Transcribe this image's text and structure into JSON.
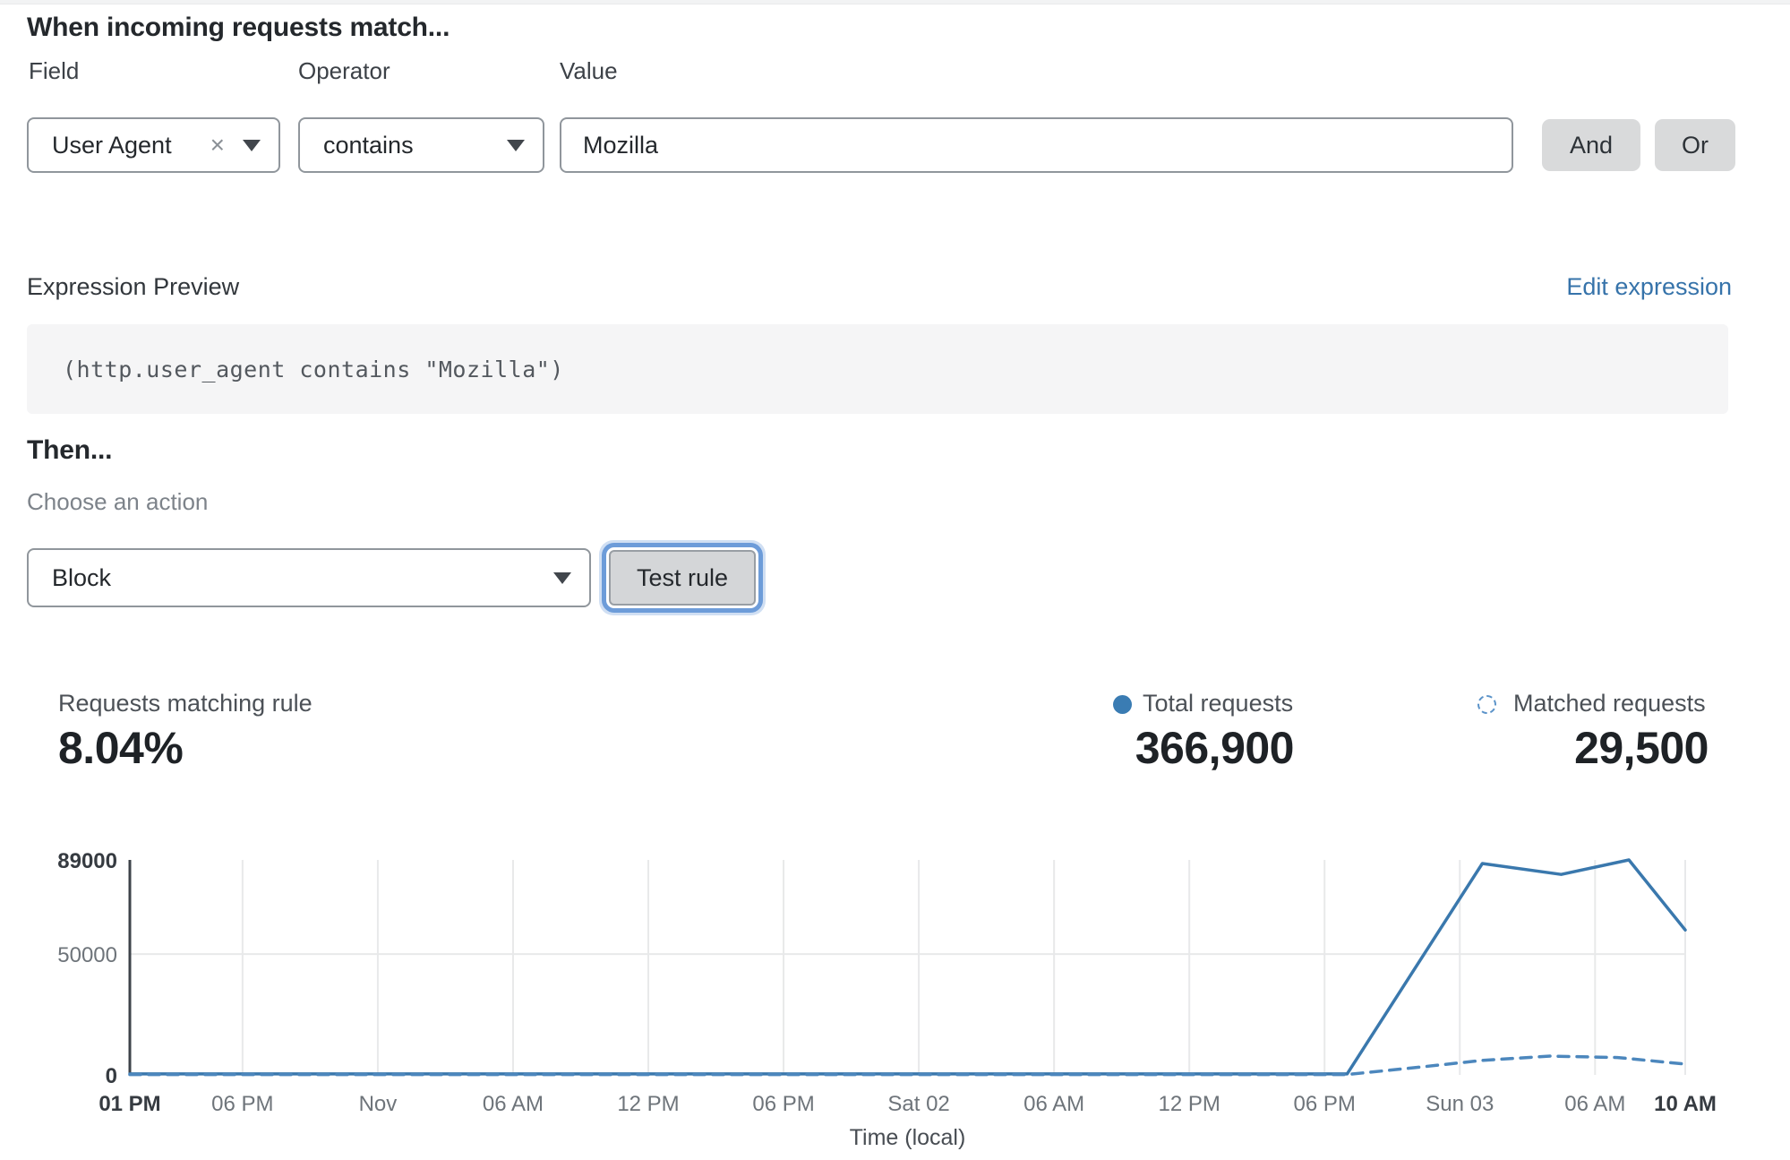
{
  "header": {
    "title": "When incoming requests match..."
  },
  "rule_builder": {
    "field_label": "Field",
    "operator_label": "Operator",
    "value_label": "Value",
    "field_value": "User Agent",
    "field_clear": "×",
    "operator_value": "contains",
    "value_value": "Mozilla",
    "and_label": "And",
    "or_label": "Or"
  },
  "expression": {
    "preview_label": "Expression Preview",
    "edit_link": "Edit expression",
    "code": "(http.user_agent contains \"Mozilla\")"
  },
  "action": {
    "then_label": "Then...",
    "choose_label": "Choose an action",
    "action_value": "Block",
    "test_button": "Test rule"
  },
  "stats": {
    "matching_label": "Requests matching rule",
    "matching_value": "8.04%",
    "total_label": "Total requests",
    "total_value": "366,900",
    "matched_label": "Matched requests",
    "matched_value": "29,500"
  },
  "colors": {
    "link_blue": "#3673aa",
    "legend_solid_blue": "#3a7cb3",
    "legend_dashed_blue": "#5b93c9",
    "focus_ring_blue": "#6d9cd9",
    "button_grey": "#d9dadb"
  },
  "chart_data": {
    "type": "line",
    "title": "",
    "xlabel": "Time (local)",
    "ylabel": "",
    "ylim": [
      0,
      89000
    ],
    "x_span_hours": 69,
    "grid": true,
    "legend_position": "top-right stats row",
    "y_ticks": [
      {
        "value": 0,
        "label": "0",
        "bold": true
      },
      {
        "value": 50000,
        "label": "50000",
        "bold": false
      },
      {
        "value": 89000,
        "label": "89000",
        "bold": true
      }
    ],
    "x_ticks": [
      {
        "h": 0,
        "label": "01 PM",
        "bold": true
      },
      {
        "h": 5,
        "label": "06 PM",
        "bold": false
      },
      {
        "h": 11,
        "label": "Nov",
        "bold": false
      },
      {
        "h": 17,
        "label": "06 AM",
        "bold": false
      },
      {
        "h": 23,
        "label": "12 PM",
        "bold": false
      },
      {
        "h": 29,
        "label": "06 PM",
        "bold": false
      },
      {
        "h": 35,
        "label": "Sat 02",
        "bold": false
      },
      {
        "h": 41,
        "label": "06 AM",
        "bold": false
      },
      {
        "h": 47,
        "label": "12 PM",
        "bold": false
      },
      {
        "h": 53,
        "label": "06 PM",
        "bold": false
      },
      {
        "h": 59,
        "label": "Sun 03",
        "bold": false
      },
      {
        "h": 65,
        "label": "06 AM",
        "bold": false
      },
      {
        "h": 69,
        "label": "10 AM",
        "bold": true
      }
    ],
    "series": [
      {
        "name": "Total requests",
        "style": "solid",
        "color": "#3a78ad",
        "points": [
          [
            0,
            400
          ],
          [
            54,
            400
          ],
          [
            60,
            87500
          ],
          [
            63.5,
            83000
          ],
          [
            66.5,
            89000
          ],
          [
            69,
            60000
          ]
        ]
      },
      {
        "name": "Matched requests",
        "style": "dashed",
        "color": "#4c87bd",
        "points": [
          [
            0,
            150
          ],
          [
            54,
            150
          ],
          [
            57,
            3000
          ],
          [
            60,
            6000
          ],
          [
            63,
            7800
          ],
          [
            66,
            7200
          ],
          [
            69,
            4500
          ]
        ]
      }
    ]
  }
}
